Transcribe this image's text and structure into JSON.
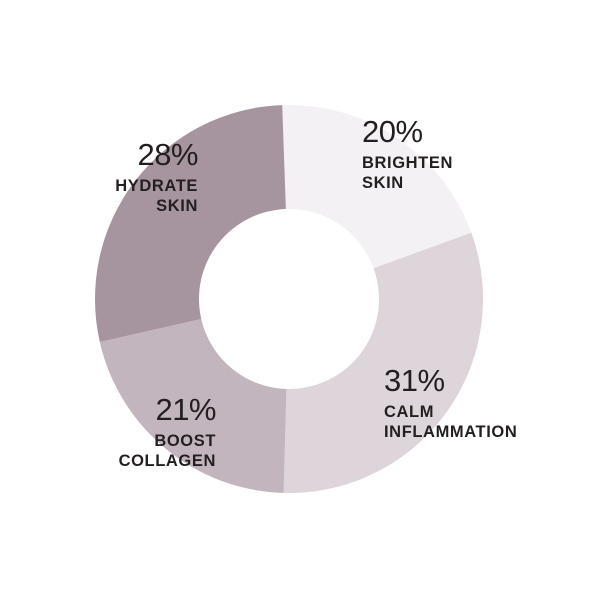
{
  "chart_data": {
    "type": "pie",
    "donut": true,
    "slices": [
      {
        "percent_label": "20%",
        "value": 20,
        "label_lines": [
          "BRIGHTEN",
          "SKIN"
        ],
        "color": "#f3f1f3"
      },
      {
        "percent_label": "31%",
        "value": 31,
        "label_lines": [
          "CALM",
          "INFLAMMATION"
        ],
        "color": "#ddd5da"
      },
      {
        "percent_label": "21%",
        "value": 21,
        "label_lines": [
          "BOOST",
          "COLLAGEN"
        ],
        "color": "#c2b5bd"
      },
      {
        "percent_label": "28%",
        "value": 28,
        "label_lines": [
          "HYDRATE",
          "SKIN"
        ],
        "color": "#a6949f"
      }
    ],
    "start": "top",
    "direction": "clockwise",
    "legend": "none"
  }
}
